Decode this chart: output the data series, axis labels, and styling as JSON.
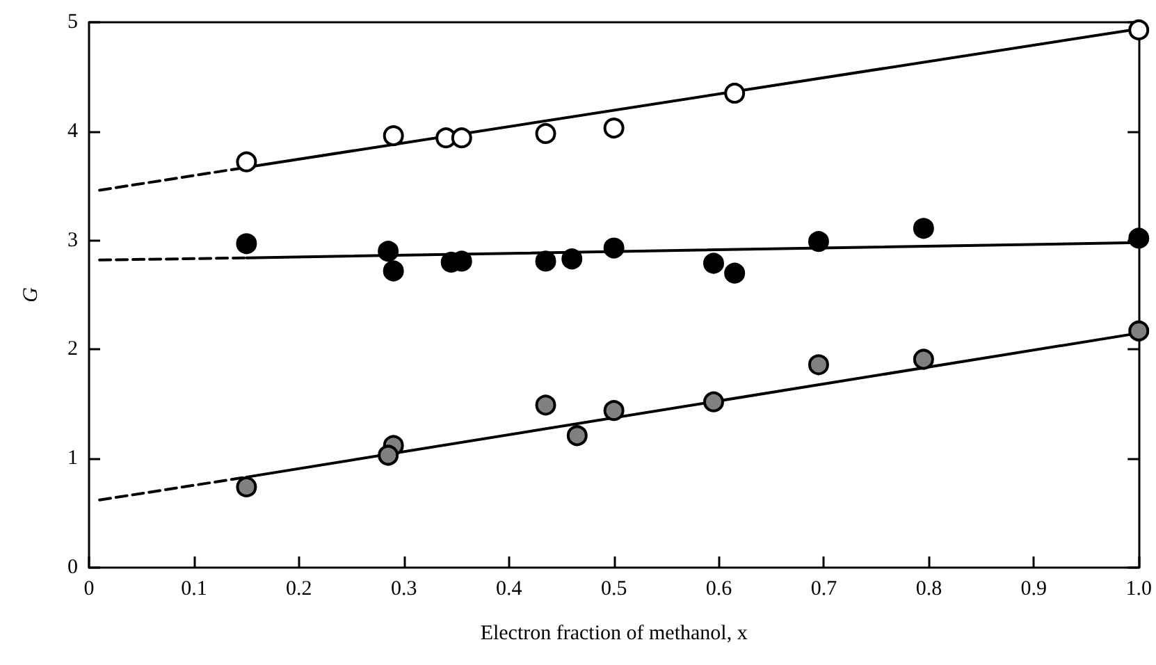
{
  "chart_data": {
    "type": "scatter",
    "xlabel": "Electron fraction of methanol, x",
    "ylabel": "G",
    "xlim": [
      0,
      1.0
    ],
    "ylim": [
      0,
      5
    ],
    "xticks": [
      0,
      0.1,
      0.2,
      0.3,
      0.4,
      0.5,
      0.6,
      0.7,
      0.8,
      0.9,
      {
        "value": 1.0,
        "label": "1.0"
      }
    ],
    "yticks": [
      0,
      1,
      2,
      3,
      4,
      5
    ],
    "grid": false,
    "series": [
      {
        "marker": "circle",
        "color": "#ffffff",
        "x": [
          0.15,
          0.29,
          0.34,
          0.355,
          0.435,
          0.5,
          0.615,
          1.0
        ],
        "values": [
          3.72,
          3.96,
          3.94,
          3.94,
          3.98,
          4.03,
          4.35,
          4.93
        ]
      },
      {
        "marker": "circle",
        "color": "#000000",
        "x": [
          0.15,
          0.285,
          0.29,
          0.345,
          0.355,
          0.435,
          0.46,
          0.5,
          0.595,
          0.615,
          0.695,
          0.795,
          1.0
        ],
        "values": [
          2.97,
          2.9,
          2.72,
          2.8,
          2.81,
          2.81,
          2.83,
          2.93,
          2.79,
          2.7,
          2.99,
          3.11,
          3.02
        ]
      },
      {
        "marker": "circle",
        "color": "#808080",
        "x": [
          0.15,
          0.29,
          0.285,
          0.435,
          0.465,
          0.5,
          0.595,
          0.695,
          0.795,
          1.0
        ],
        "values": [
          0.74,
          1.12,
          1.03,
          1.49,
          1.21,
          1.44,
          1.52,
          1.86,
          1.91,
          2.17
        ]
      },
      {
        "type": "line",
        "marker": "none",
        "line_style": "dashed",
        "color": "#000000",
        "x": [
          0.01,
          0.15
        ],
        "values": [
          3.46,
          3.67
        ]
      },
      {
        "type": "line",
        "marker": "none",
        "line_style": "solid",
        "color": "#000000",
        "x": [
          0.15,
          1.0
        ],
        "values": [
          3.67,
          4.94
        ]
      },
      {
        "type": "line",
        "marker": "none",
        "line_style": "dashed",
        "color": "#000000",
        "x": [
          0.01,
          0.15
        ],
        "values": [
          2.82,
          2.84
        ]
      },
      {
        "type": "line",
        "marker": "none",
        "line_style": "solid",
        "color": "#000000",
        "x": [
          0.15,
          1.0
        ],
        "values": [
          2.84,
          2.98
        ]
      },
      {
        "type": "line",
        "marker": "none",
        "line_style": "dashed",
        "color": "#000000",
        "x": [
          0.01,
          0.15
        ],
        "values": [
          0.62,
          0.83
        ]
      },
      {
        "type": "line",
        "marker": "none",
        "line_style": "solid",
        "color": "#000000",
        "x": [
          0.15,
          1.0
        ],
        "values": [
          0.83,
          2.15
        ]
      }
    ]
  }
}
